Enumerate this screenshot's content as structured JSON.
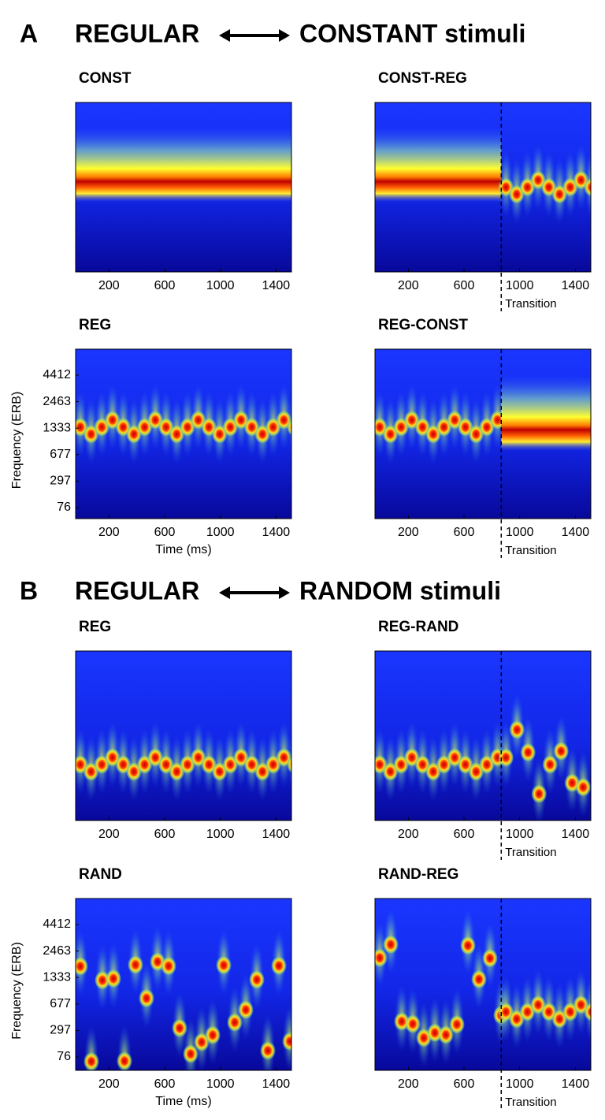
{
  "sections": [
    {
      "letter": "A",
      "left": "REGULAR",
      "right": "CONSTANT stimuli",
      "panels": [
        {
          "title": "CONST"
        },
        {
          "title": "CONST-REG"
        },
        {
          "title": "REG"
        },
        {
          "title": "REG-CONST"
        }
      ]
    },
    {
      "letter": "B",
      "left": "REGULAR",
      "right": "RANDOM stimuli",
      "panels": [
        {
          "title": "REG"
        },
        {
          "title": "REG-RAND"
        },
        {
          "title": "RAND"
        },
        {
          "title": "RAND-REG"
        }
      ]
    }
  ],
  "xticks": [
    200,
    600,
    1000,
    1400
  ],
  "yticks": [
    4412,
    2463,
    1333,
    677,
    297,
    76
  ],
  "x_axis_label": "Time (ms)",
  "y_axis_label": "Frequency (ERB)",
  "transition_label": "Transition"
}
